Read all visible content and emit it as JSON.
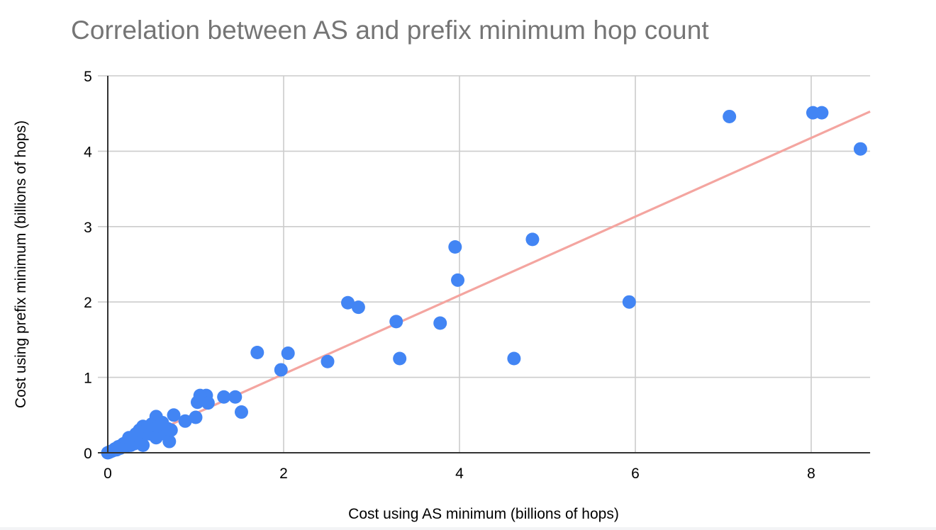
{
  "chart_data": {
    "type": "scatter",
    "title": "Correlation between AS and prefix minimum hop count",
    "xlabel": "Cost using AS minimum (billions of hops)",
    "ylabel": "Cost using prefix minimum (billions of hops)",
    "xlim": [
      0,
      8.67
    ],
    "ylim": [
      0,
      5
    ],
    "xticks": [
      "0",
      "2",
      "4",
      "6",
      "8"
    ],
    "yticks": [
      "0",
      "1",
      "2",
      "3",
      "4",
      "5"
    ],
    "grid": true,
    "legend": null,
    "series": [
      {
        "name": "Cost",
        "color": "#4285f4",
        "points": [
          [
            0.0,
            0.0
          ],
          [
            0.02,
            0.01
          ],
          [
            0.04,
            0.02
          ],
          [
            0.06,
            0.03
          ],
          [
            0.08,
            0.05
          ],
          [
            0.1,
            0.04
          ],
          [
            0.12,
            0.08
          ],
          [
            0.14,
            0.06
          ],
          [
            0.16,
            0.1
          ],
          [
            0.18,
            0.12
          ],
          [
            0.2,
            0.08
          ],
          [
            0.22,
            0.15
          ],
          [
            0.24,
            0.2
          ],
          [
            0.26,
            0.1
          ],
          [
            0.28,
            0.18
          ],
          [
            0.3,
            0.12
          ],
          [
            0.32,
            0.25
          ],
          [
            0.34,
            0.22
          ],
          [
            0.36,
            0.3
          ],
          [
            0.38,
            0.15
          ],
          [
            0.4,
            0.35
          ],
          [
            0.4,
            0.1
          ],
          [
            0.42,
            0.28
          ],
          [
            0.45,
            0.32
          ],
          [
            0.48,
            0.25
          ],
          [
            0.5,
            0.38
          ],
          [
            0.52,
            0.3
          ],
          [
            0.55,
            0.48
          ],
          [
            0.55,
            0.2
          ],
          [
            0.58,
            0.35
          ],
          [
            0.6,
            0.28
          ],
          [
            0.62,
            0.4
          ],
          [
            0.65,
            0.25
          ],
          [
            0.68,
            0.32
          ],
          [
            0.7,
            0.15
          ],
          [
            0.72,
            0.3
          ],
          [
            0.75,
            0.5
          ],
          [
            0.88,
            0.42
          ],
          [
            1.0,
            0.47
          ],
          [
            1.02,
            0.67
          ],
          [
            1.05,
            0.76
          ],
          [
            1.12,
            0.76
          ],
          [
            1.14,
            0.66
          ],
          [
            1.32,
            0.74
          ],
          [
            1.45,
            0.74
          ],
          [
            1.52,
            0.54
          ],
          [
            1.7,
            1.33
          ],
          [
            1.97,
            1.1
          ],
          [
            2.05,
            1.32
          ],
          [
            2.5,
            1.21
          ],
          [
            2.73,
            1.99
          ],
          [
            2.85,
            1.93
          ],
          [
            3.28,
            1.74
          ],
          [
            3.32,
            1.25
          ],
          [
            3.78,
            1.72
          ],
          [
            3.95,
            2.73
          ],
          [
            3.98,
            2.29
          ],
          [
            4.62,
            1.25
          ],
          [
            4.83,
            2.83
          ],
          [
            5.93,
            2.0
          ],
          [
            7.07,
            4.46
          ],
          [
            8.02,
            4.51
          ],
          [
            8.12,
            4.51
          ],
          [
            8.56,
            4.03
          ]
        ]
      }
    ],
    "trendline": {
      "color": "#f4a5a0",
      "slope": 0.522,
      "intercept": 0.0,
      "x_range": [
        0,
        8.67
      ]
    }
  }
}
